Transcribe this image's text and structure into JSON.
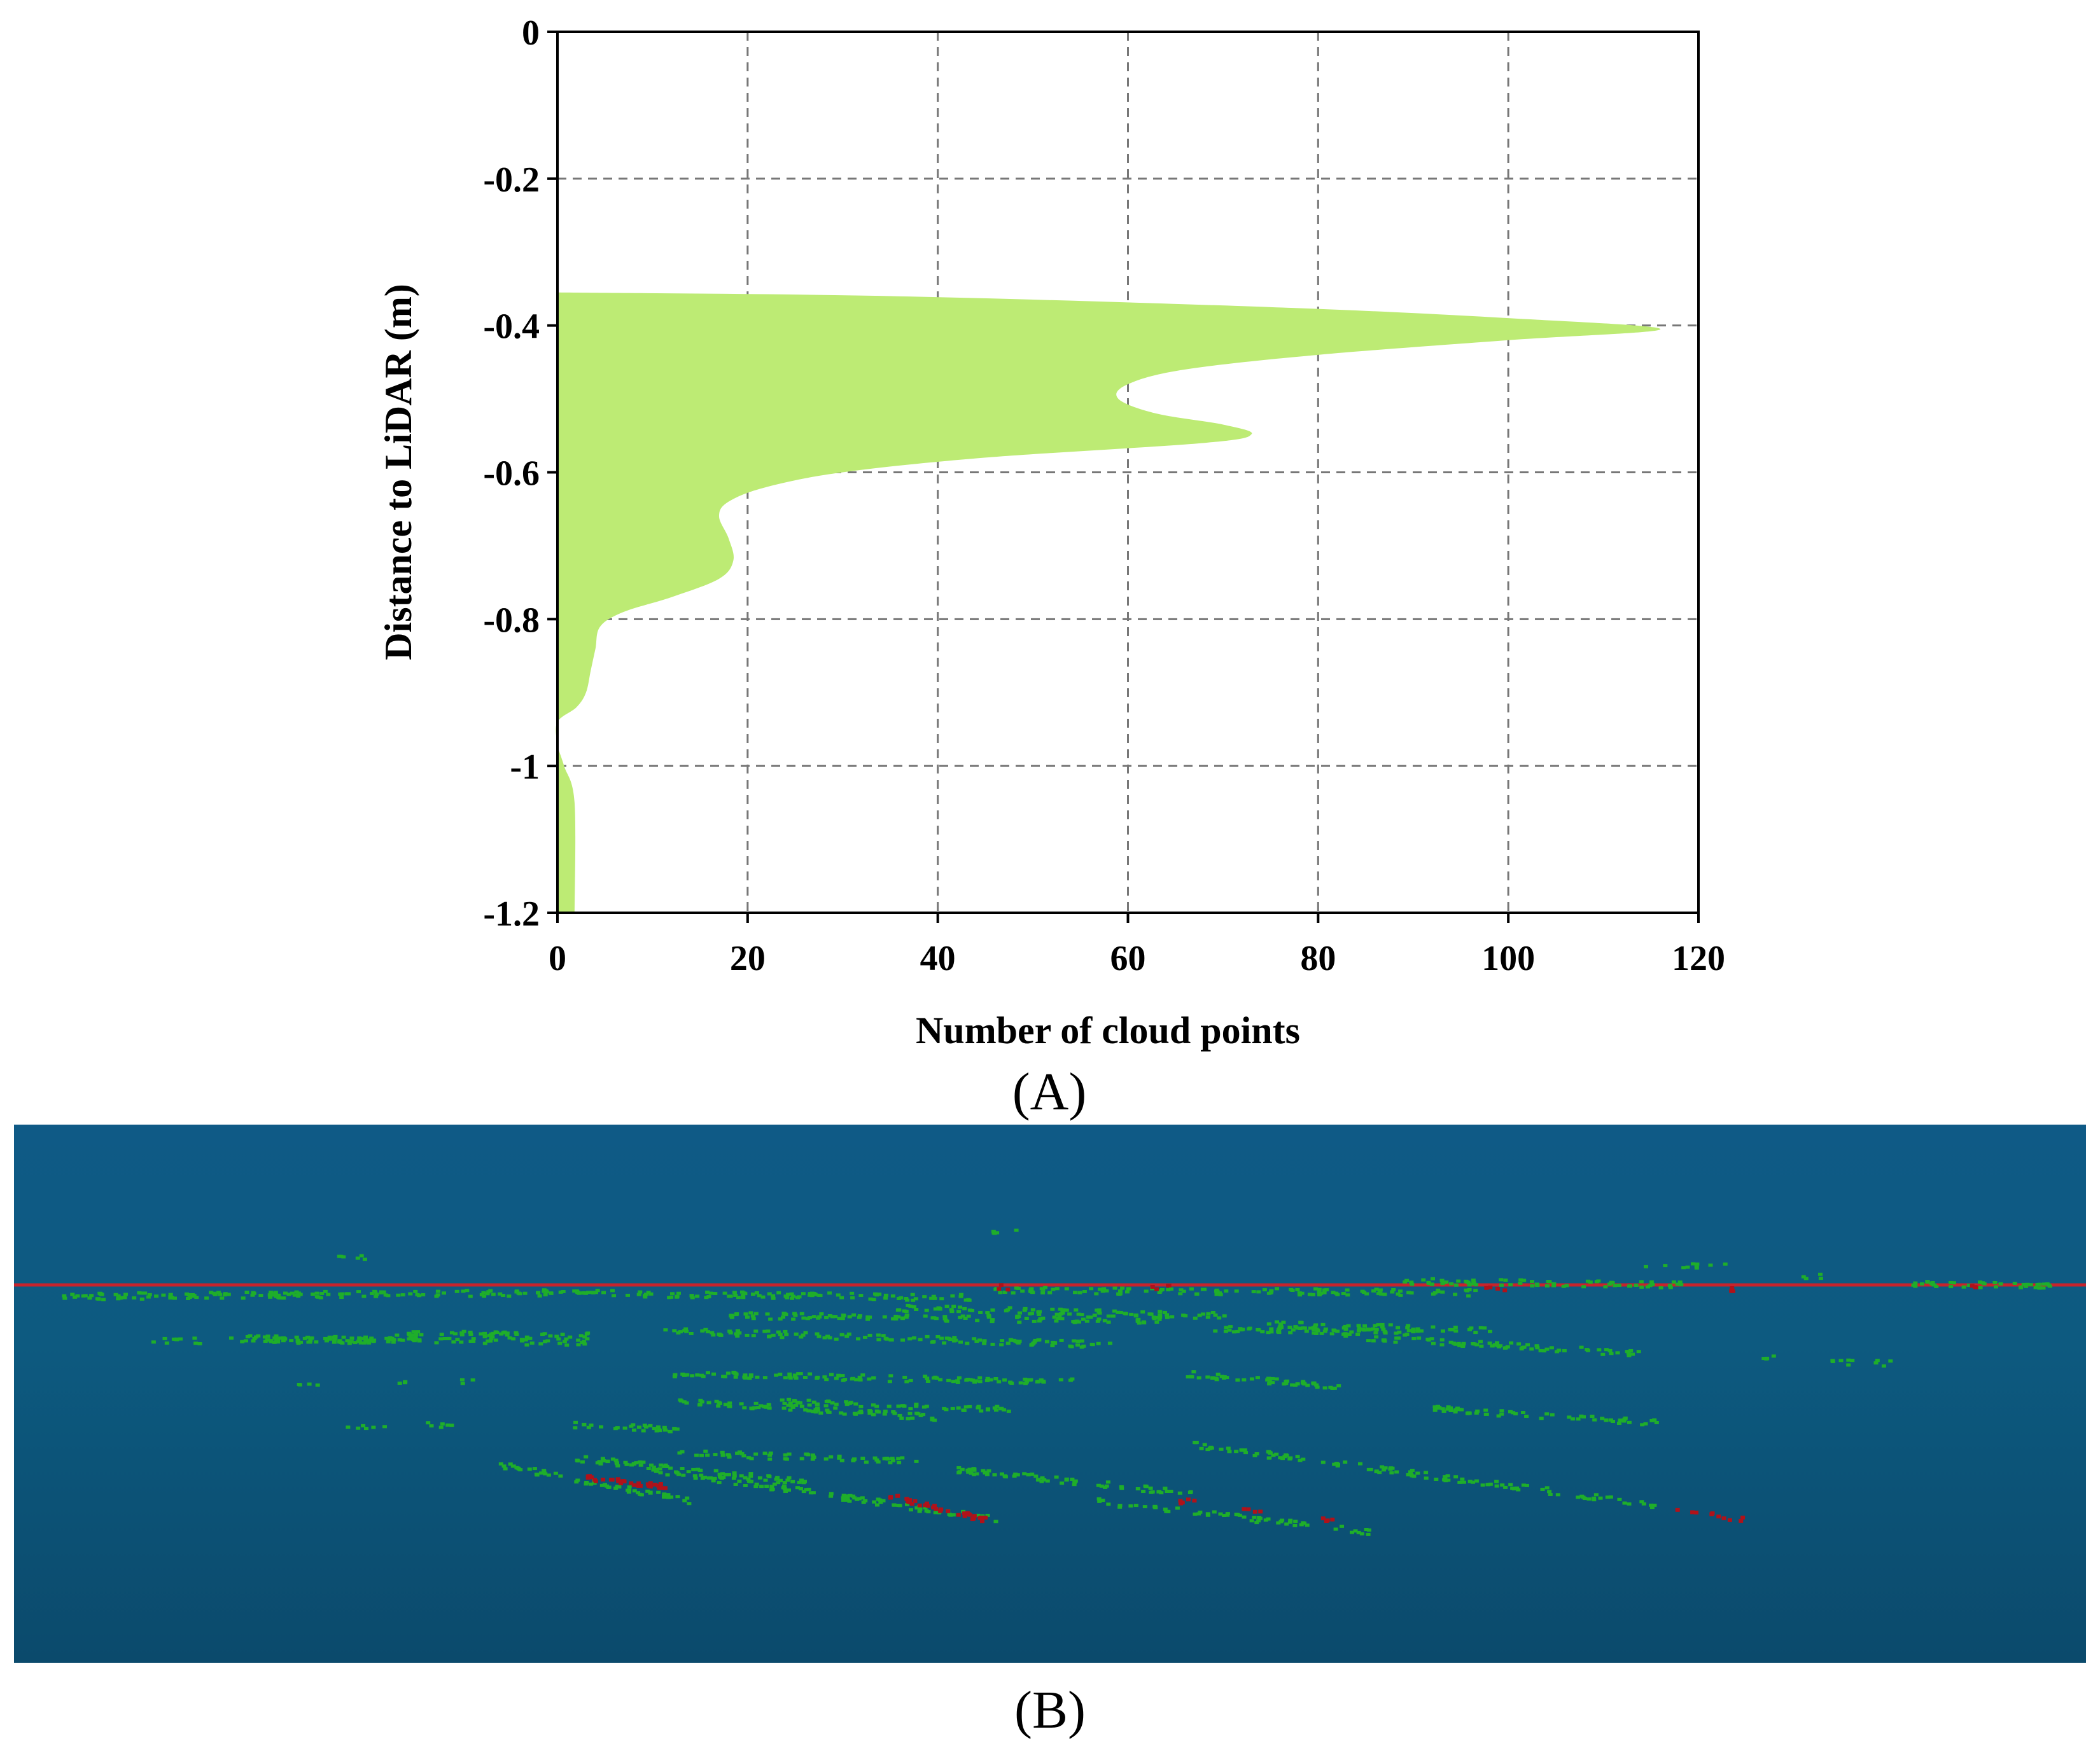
{
  "chart_data": {
    "type": "area",
    "orientation": "horizontal",
    "xlabel": "Number of cloud points",
    "ylabel": "Distance to LiDAR (m)",
    "xlim": [
      0,
      120
    ],
    "ylim": [
      -1.2,
      0
    ],
    "xticks": [
      0,
      20,
      40,
      60,
      80,
      100,
      120
    ],
    "yticks": [
      0,
      -0.2,
      -0.4,
      -0.6,
      -0.8,
      -1,
      -1.2
    ],
    "ytick_labels": [
      "0",
      "-0.2",
      "-0.4",
      "-0.6",
      "-0.8",
      "-1",
      "-1.2"
    ],
    "grid": true,
    "fill_color": "#bdeb74",
    "points": [
      {
        "y": -0.355,
        "x": 0
      },
      {
        "y": -0.36,
        "x": 35
      },
      {
        "y": -0.375,
        "x": 75
      },
      {
        "y": -0.39,
        "x": 100
      },
      {
        "y": -0.405,
        "x": 116
      },
      {
        "y": -0.42,
        "x": 100
      },
      {
        "y": -0.44,
        "x": 80
      },
      {
        "y": -0.46,
        "x": 66
      },
      {
        "y": -0.48,
        "x": 60
      },
      {
        "y": -0.5,
        "x": 59
      },
      {
        "y": -0.52,
        "x": 63
      },
      {
        "y": -0.535,
        "x": 70
      },
      {
        "y": -0.548,
        "x": 73
      },
      {
        "y": -0.56,
        "x": 68
      },
      {
        "y": -0.58,
        "x": 45
      },
      {
        "y": -0.6,
        "x": 30
      },
      {
        "y": -0.62,
        "x": 22
      },
      {
        "y": -0.64,
        "x": 18
      },
      {
        "y": -0.66,
        "x": 17
      },
      {
        "y": -0.69,
        "x": 18
      },
      {
        "y": -0.72,
        "x": 18.5
      },
      {
        "y": -0.745,
        "x": 17
      },
      {
        "y": -0.77,
        "x": 12
      },
      {
        "y": -0.79,
        "x": 7
      },
      {
        "y": -0.81,
        "x": 4.5
      },
      {
        "y": -0.84,
        "x": 4
      },
      {
        "y": -0.87,
        "x": 3.5
      },
      {
        "y": -0.9,
        "x": 3
      },
      {
        "y": -0.92,
        "x": 2
      },
      {
        "y": -0.94,
        "x": 0
      },
      {
        "y": -0.97,
        "x": 0
      },
      {
        "y": -1.0,
        "x": 0.7
      },
      {
        "y": -1.05,
        "x": 1.8
      },
      {
        "y": -1.2,
        "x": 1.8
      }
    ]
  },
  "captions": {
    "panel_a": "(A)",
    "panel_b": "(B)"
  },
  "point_cloud": {
    "background_color": "#0d5a80",
    "ground_points_color": "#1fae2a",
    "highlight_points_color": "#b0121a",
    "reference_line_color": "#c8232c"
  }
}
